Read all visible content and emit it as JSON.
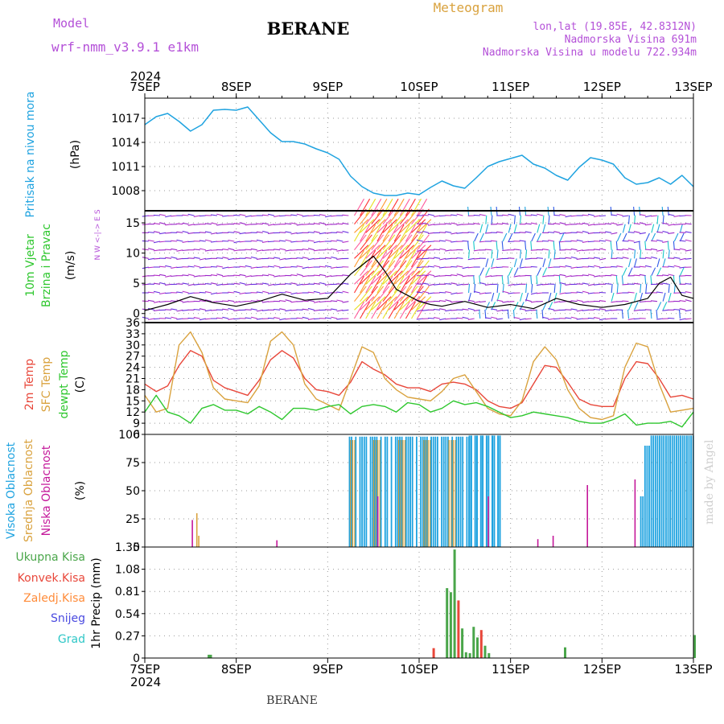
{
  "header": {
    "model_label": "Model",
    "model_name": "wrf-nmm_v3.9.1 e1km",
    "station": "BERANE",
    "meteogram_label": "Meteogram",
    "coords": "lon,lat (19.85E, 42.8312N)",
    "elevation": "Nadmorska Visina 691m",
    "model_elevation": "Nadmorska Visina u modelu 722.934m",
    "footer_station": "BERANE",
    "watermark": "made by Angel",
    "year_top": "2024",
    "year_bottom": "2024"
  },
  "colors": {
    "pressure": "#1fa3e0",
    "temp2m": "#e8473a",
    "sfc_temp": "#d9a23e",
    "dewpoint": "#2ec72e",
    "high_cloud": "#1fa3e0",
    "mid_cloud": "#d9a23e",
    "low_cloud": "#c4189a",
    "total_precip": "#4aa64a",
    "conv_precip": "#e8473a",
    "purple_text": "#b450d8"
  },
  "chart_data": {
    "x_ticks": [
      "7SEP",
      "8SEP",
      "9SEP",
      "10SEP",
      "11SEP",
      "12SEP",
      "13SEP"
    ],
    "hours_total": 144,
    "panels": [
      {
        "id": "pressure",
        "type": "line",
        "labels": [
          "Pritisak na nivou mora",
          "(hPa)"
        ],
        "yticks": [
          1008,
          1011,
          1014,
          1017
        ],
        "ylim": [
          1005.5,
          1019.5
        ],
        "series": [
          {
            "x": [
              0,
              3,
              6,
              9,
              12,
              15,
              18,
              21,
              24,
              27,
              30,
              33,
              36,
              39,
              42,
              45,
              48,
              51,
              54,
              57,
              60,
              63,
              66,
              69,
              72,
              75,
              78,
              81,
              84,
              87,
              90,
              93,
              96,
              99,
              102,
              105,
              108,
              111,
              114,
              117,
              120,
              123,
              126,
              129,
              132,
              135,
              138,
              141,
              144
            ],
            "y": [
              1016.2,
              1017.2,
              1017.6,
              1016.6,
              1015.4,
              1016.2,
              1018.0,
              1018.1,
              1018.0,
              1018.4,
              1016.8,
              1015.2,
              1014.1,
              1014.1,
              1013.8,
              1013.2,
              1012.7,
              1011.9,
              1009.8,
              1008.5,
              1007.7,
              1007.4,
              1007.4,
              1007.7,
              1007.5,
              1008.4,
              1009.2,
              1008.6,
              1008.3,
              1009.6,
              1011.0,
              1011.6,
              1012.0,
              1012.4,
              1011.3,
              1010.8,
              1009.9,
              1009.3,
              1010.9,
              1012.1,
              1011.8,
              1011.3,
              1009.6,
              1008.8,
              1009.0,
              1009.6,
              1008.8,
              1009.9,
              1008.5
            ]
          }
        ]
      },
      {
        "id": "wind",
        "type": "line",
        "labels": [
          "10m Vjetar",
          "Brzina i Pravac",
          "(m/s)"
        ],
        "compass_note": "N  W <-|-> E  S",
        "yticks": [
          0,
          5,
          10,
          15
        ],
        "ylim": [
          -1.5,
          17
        ],
        "series": [
          {
            "x": [
              0,
              6,
              12,
              18,
              24,
              30,
              36,
              42,
              48,
              54,
              60,
              63,
              66,
              69,
              72,
              75,
              78,
              84,
              90,
              96,
              102,
              108,
              114,
              120,
              126,
              132,
              135,
              138,
              141,
              144
            ],
            "y": [
              0.5,
              1.5,
              2.8,
              1.8,
              1.2,
              2.0,
              3.2,
              2.2,
              2.5,
              6.5,
              9.5,
              7.0,
              4.0,
              3.0,
              2.0,
              1.5,
              1.2,
              2.0,
              1.0,
              1.5,
              0.8,
              2.5,
              1.5,
              1.0,
              1.5,
              2.5,
              5.0,
              6.0,
              3.0,
              2.5
            ]
          }
        ]
      },
      {
        "id": "temperature",
        "type": "line",
        "labels": [
          "2m Temp",
          "SFC Temp",
          "dewpt Temp",
          "(C)"
        ],
        "yticks": [
          6,
          9,
          12,
          15,
          18,
          21,
          24,
          27,
          30,
          33,
          36
        ],
        "ylim": [
          6,
          36
        ],
        "series": [
          {
            "name": "2m Temp",
            "x": [
              0,
              3,
              6,
              9,
              12,
              15,
              18,
              21,
              24,
              27,
              30,
              33,
              36,
              39,
              42,
              45,
              48,
              51,
              54,
              57,
              60,
              63,
              66,
              69,
              72,
              75,
              78,
              81,
              84,
              87,
              90,
              93,
              96,
              99,
              102,
              105,
              108,
              111,
              114,
              117,
              120,
              123,
              126,
              129,
              132,
              135,
              138,
              141,
              144
            ],
            "y": [
              19.5,
              17.5,
              19,
              24.5,
              28.5,
              27,
              20.5,
              18.5,
              17.5,
              16.5,
              20.5,
              26,
              28.5,
              26.5,
              21,
              18,
              17.5,
              16.5,
              20,
              25.5,
              23.5,
              22,
              19.5,
              18.5,
              18.5,
              17.5,
              19.5,
              20,
              19.5,
              18,
              15,
              13.5,
              13,
              14.5,
              19.5,
              24.5,
              24,
              20,
              15.5,
              14,
              13.5,
              13.5,
              21,
              25.5,
              25,
              21,
              16,
              16.5,
              15.5
            ]
          },
          {
            "name": "SFC Temp",
            "x": [
              0,
              3,
              6,
              9,
              12,
              15,
              18,
              21,
              24,
              27,
              30,
              33,
              36,
              39,
              42,
              45,
              48,
              51,
              54,
              57,
              60,
              63,
              66,
              69,
              72,
              75,
              78,
              81,
              84,
              87,
              90,
              93,
              96,
              99,
              102,
              105,
              108,
              111,
              114,
              117,
              120,
              123,
              126,
              129,
              132,
              135,
              138,
              141,
              144
            ],
            "y": [
              16.5,
              12,
              13,
              30,
              33.5,
              28,
              18.5,
              15.5,
              15,
              14.5,
              19,
              31,
              33.5,
              30,
              19.5,
              15.5,
              14,
              12.5,
              21,
              29.5,
              28,
              21,
              18,
              16,
              15.5,
              15,
              17.5,
              21,
              22,
              17.5,
              13,
              11.5,
              11,
              15,
              25.5,
              29.5,
              26,
              18,
              13,
              10.5,
              10,
              11,
              24,
              30.5,
              29.5,
              19.5,
              12,
              12.5,
              13
            ]
          },
          {
            "name": "dewpt Temp",
            "x": [
              0,
              3,
              6,
              9,
              12,
              15,
              18,
              21,
              24,
              27,
              30,
              33,
              36,
              39,
              42,
              45,
              48,
              51,
              54,
              57,
              60,
              63,
              66,
              69,
              72,
              75,
              78,
              81,
              84,
              87,
              90,
              93,
              96,
              99,
              102,
              105,
              108,
              111,
              114,
              117,
              120,
              123,
              126,
              129,
              132,
              135,
              138,
              141,
              144
            ],
            "y": [
              12,
              16.5,
              12,
              11,
              9,
              13,
              14,
              12.5,
              12.5,
              11.5,
              13.5,
              12,
              10,
              13,
              13,
              12.5,
              13.5,
              14,
              11.5,
              13.5,
              14,
              13.5,
              12,
              14.5,
              14,
              12,
              13,
              15,
              14,
              14.5,
              13.5,
              12,
              10.5,
              11,
              12,
              11.5,
              11,
              10.5,
              9.5,
              9,
              9,
              10,
              11.5,
              8.5,
              9,
              9,
              9.5,
              8,
              12
            ]
          }
        ]
      },
      {
        "id": "cloud",
        "type": "bar",
        "labels": [
          "Visoka Oblacnost",
          "Srednja Oblacnost",
          "Niska Oblacnost",
          "(%)"
        ],
        "yticks": [
          0,
          25,
          50,
          75,
          100
        ],
        "ylim": [
          0,
          100
        ]
      },
      {
        "id": "precip",
        "type": "bar",
        "labels": [
          "Ukupna Kisa",
          "Konvek.Kisa",
          "Zaledj.Kisa",
          "Snijeg",
          "Grad",
          "1hr Precip (mm)"
        ],
        "yticks": [
          0,
          0.27,
          0.54,
          0.81,
          1.08,
          1.35
        ],
        "ylim": [
          0,
          1.35
        ],
        "bars": [
          {
            "h": 16.5,
            "v": 0.04
          },
          {
            "h": 17,
            "v": 0.04
          },
          {
            "h": 75.5,
            "v": 0.12
          },
          {
            "h": 79,
            "v": 0.85
          },
          {
            "h": 80,
            "v": 0.8
          },
          {
            "h": 81,
            "v": 1.32
          },
          {
            "h": 82,
            "v": 0.7
          },
          {
            "h": 83,
            "v": 0.36
          },
          {
            "h": 84,
            "v": 0.07
          },
          {
            "h": 85,
            "v": 0.06
          },
          {
            "h": 86,
            "v": 0.38
          },
          {
            "h": 87,
            "v": 0.25
          },
          {
            "h": 88,
            "v": 0.34
          },
          {
            "h": 89,
            "v": 0.15
          },
          {
            "h": 90,
            "v": 0.06
          },
          {
            "h": 110,
            "v": 0.13
          },
          {
            "h": 144,
            "v": 0.28
          }
        ]
      }
    ]
  }
}
